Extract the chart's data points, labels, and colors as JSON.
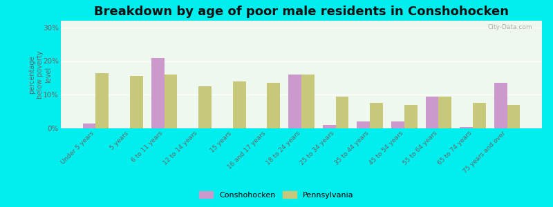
{
  "title": "Breakdown by age of poor male residents in Conshohocken",
  "ylabel": "percentage\nbelow poverty\nlevel",
  "categories": [
    "Under 5 years",
    "5 years",
    "6 to 11 years",
    "12 to 14 years",
    "15 years",
    "16 and 17 years",
    "18 to 24 years",
    "25 to 34 years",
    "35 to 44 years",
    "45 to 54 years",
    "55 to 64 years",
    "65 to 74 years",
    "75 years and over"
  ],
  "conshohocken": [
    1.5,
    0,
    21.0,
    0,
    0,
    0,
    16.0,
    1.0,
    2.0,
    2.0,
    9.5,
    0.5,
    13.5
  ],
  "pennsylvania": [
    16.5,
    15.5,
    16.0,
    12.5,
    14.0,
    13.5,
    16.0,
    9.5,
    7.5,
    7.0,
    9.5,
    7.5,
    7.0
  ],
  "conshohocken_color": "#cc99cc",
  "pennsylvania_color": "#c8c87a",
  "outer_bg": "#00eeee",
  "plot_bg": "#eef8ee",
  "ylim": [
    0,
    32
  ],
  "yticks": [
    0,
    10,
    20,
    30
  ],
  "ytick_labels": [
    "0%",
    "10%",
    "20%",
    "30%"
  ],
  "title_fontsize": 13,
  "label_fontsize": 7.5,
  "bar_width": 0.38,
  "watermark": "City-Data.com"
}
